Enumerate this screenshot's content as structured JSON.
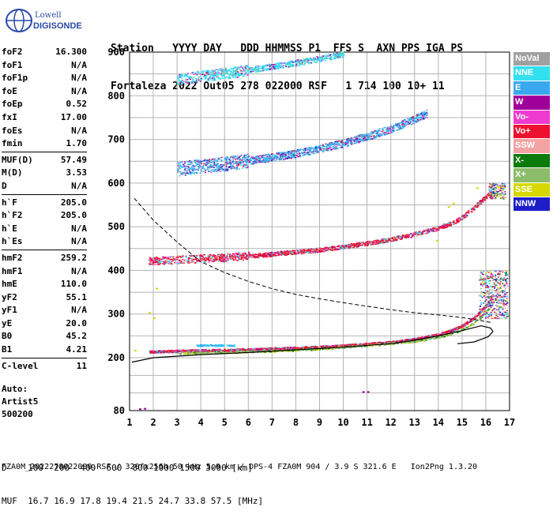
{
  "logo": {
    "line1": "Lowell",
    "line2": "DIGISONDE"
  },
  "header": {
    "labels": "Station   YYYY DAY   DDD HHMMSS P1  FFS S  AXN PPS IGA PS",
    "values": "Fortaleza 2022 Out05 278 022000 RSF   1 714 100 10+ 11"
  },
  "params_groups": [
    [
      [
        "foF2",
        "16.300"
      ],
      [
        "foF1",
        "N/A"
      ],
      [
        "foF1p",
        "N/A"
      ],
      [
        "foE",
        "N/A"
      ],
      [
        "foEp",
        "0.52"
      ],
      [
        "fxI",
        "17.00"
      ],
      [
        "foEs",
        "N/A"
      ],
      [
        "fmin",
        "1.70"
      ]
    ],
    [
      [
        "MUF(D)",
        "57.49"
      ],
      [
        "M(D)",
        "3.53"
      ],
      [
        "D",
        "N/A"
      ]
    ],
    [
      [
        "h`F",
        "205.0"
      ],
      [
        "h`F2",
        "205.0"
      ],
      [
        "h`E",
        "N/A"
      ],
      [
        "h`Es",
        "N/A"
      ]
    ],
    [
      [
        "hmF2",
        "259.2"
      ],
      [
        "hmF1",
        "N/A"
      ],
      [
        "hmE",
        "110.0"
      ],
      [
        "yF2",
        "55.1"
      ],
      [
        "yF1",
        "N/A"
      ],
      [
        "yE",
        "20.0"
      ],
      [
        "B0",
        "45.2"
      ],
      [
        "B1",
        "4.21"
      ]
    ],
    [
      [
        "C-level",
        "11"
      ]
    ]
  ],
  "auto": {
    "line1": "Auto:",
    "line2": "Artist5",
    "line3": "500200"
  },
  "legend": [
    {
      "label": "NoVal",
      "color": "#a0a0a0"
    },
    {
      "label": "NNE",
      "color": "#33e0f0"
    },
    {
      "label": "E",
      "color": "#3aa8ef"
    },
    {
      "label": "W",
      "color": "#a0009a"
    },
    {
      "label": "Vo-",
      "color": "#ef3ad0"
    },
    {
      "label": "Vo+",
      "color": "#ee1030"
    },
    {
      "label": "SSW",
      "color": "#f4a3a3"
    },
    {
      "label": "X-",
      "color": "#0a7a0a"
    },
    {
      "label": "X+",
      "color": "#8cbd6a"
    },
    {
      "label": "SSE",
      "color": "#d6d800"
    },
    {
      "label": "NNW",
      "color": "#1e1ec8"
    }
  ],
  "axes": {
    "x_ticks": [
      "1",
      "2",
      "3",
      "4",
      "5",
      "6",
      "7",
      "8",
      "9",
      "10",
      "11",
      "12",
      "13",
      "14",
      "15",
      "16",
      "17"
    ],
    "y_ticks": [
      "80",
      "200",
      "300",
      "400",
      "500",
      "600",
      "700",
      "800",
      "900"
    ]
  },
  "bottom": {
    "line1": "D    100  200  400  600  800 1000 1500 3000 [km]",
    "line2": "MUF  16.7 16.9 17.8 19.4 21.5 24.7 33.8 57.5 [MHz]"
  },
  "footer": "FZA0M_2022278022000.RSF / 320fx256h 50 kHz 5.0 km / DPS-4 FZA0M 904 / 3.9 S 321.6 E   Ion2Png 1.3.20",
  "chart_data": {
    "type": "scatter",
    "xlim": [
      1,
      17
    ],
    "ylim": [
      80,
      900
    ],
    "profile_solid": [
      [
        1.1,
        190
      ],
      [
        2,
        200
      ],
      [
        4,
        207
      ],
      [
        6,
        212
      ],
      [
        8,
        218
      ],
      [
        10,
        224
      ],
      [
        12,
        232
      ],
      [
        13,
        240
      ],
      [
        14,
        250
      ],
      [
        15,
        262
      ],
      [
        15.8,
        273
      ],
      [
        16.2,
        268
      ],
      [
        16.3,
        260
      ],
      [
        16.1,
        248
      ],
      [
        15.5,
        236
      ],
      [
        14.8,
        232
      ]
    ],
    "muf_dashed": [
      [
        1.2,
        565
      ],
      [
        2,
        515
      ],
      [
        3,
        465
      ],
      [
        4,
        420
      ],
      [
        5,
        395
      ],
      [
        6,
        375
      ],
      [
        7,
        358
      ],
      [
        8,
        345
      ],
      [
        9,
        335
      ],
      [
        10,
        326
      ],
      [
        11,
        318
      ],
      [
        12,
        310
      ],
      [
        13,
        303
      ],
      [
        14,
        298
      ],
      [
        15,
        292
      ],
      [
        15.8,
        285
      ],
      [
        16.3,
        280
      ]
    ],
    "traces": [
      {
        "name": "Vo+",
        "points": [
          [
            1.8,
            214
          ],
          [
            2.5,
            215
          ],
          [
            3,
            216
          ],
          [
            4,
            217
          ],
          [
            5,
            218
          ],
          [
            6,
            219
          ],
          [
            7,
            221
          ],
          [
            8,
            223
          ],
          [
            9,
            225
          ],
          [
            10,
            228
          ],
          [
            11,
            232
          ],
          [
            12,
            236
          ],
          [
            13,
            243
          ],
          [
            13.5,
            248
          ],
          [
            14,
            254
          ],
          [
            14.5,
            262
          ],
          [
            15,
            274
          ],
          [
            15.5,
            292
          ],
          [
            16,
            320
          ],
          [
            16.3,
            345
          ]
        ]
      },
      {
        "name": "X+",
        "points": [
          [
            3,
            211
          ],
          [
            5,
            213
          ],
          [
            7,
            216
          ],
          [
            9,
            221
          ],
          [
            11,
            229
          ],
          [
            12,
            233
          ],
          [
            13,
            238
          ],
          [
            14,
            248
          ],
          [
            14.5,
            255
          ],
          [
            15,
            265
          ],
          [
            15.5,
            280
          ],
          [
            16,
            305
          ],
          [
            16.3,
            330
          ]
        ]
      },
      {
        "name": "Vo+ (2-hop)",
        "points": [
          [
            1.8,
            422
          ],
          [
            3,
            425
          ],
          [
            4,
            428
          ],
          [
            5,
            430
          ],
          [
            6,
            434
          ],
          [
            7,
            438
          ],
          [
            8,
            443
          ],
          [
            9,
            448
          ],
          [
            10,
            455
          ],
          [
            11,
            463
          ],
          [
            12,
            472
          ],
          [
            13,
            484
          ],
          [
            14,
            498
          ],
          [
            14.5,
            508
          ],
          [
            15,
            522
          ],
          [
            15.5,
            545
          ],
          [
            16,
            570
          ],
          [
            16.3,
            585
          ]
        ]
      },
      {
        "name": "E (3-hop)",
        "points": [
          [
            3,
            633
          ],
          [
            4,
            640
          ],
          [
            5,
            645
          ],
          [
            6,
            652
          ],
          [
            7,
            660
          ],
          [
            8,
            668
          ],
          [
            9,
            680
          ],
          [
            10,
            692
          ],
          [
            11,
            708
          ],
          [
            12,
            725
          ],
          [
            13,
            748
          ],
          [
            13.5,
            760
          ]
        ]
      },
      {
        "name": "E (4-hop)",
        "points": [
          [
            3,
            838
          ],
          [
            4,
            845
          ],
          [
            5,
            852
          ],
          [
            6,
            860
          ],
          [
            7,
            868
          ],
          [
            8,
            876
          ],
          [
            9,
            886
          ],
          [
            10,
            897
          ]
        ]
      },
      {
        "name": "E (Es)",
        "points": [
          [
            3.8,
            229
          ],
          [
            4.2,
            229
          ],
          [
            4.6,
            229
          ],
          [
            5,
            229
          ],
          [
            5.4,
            229
          ]
        ]
      }
    ]
  }
}
